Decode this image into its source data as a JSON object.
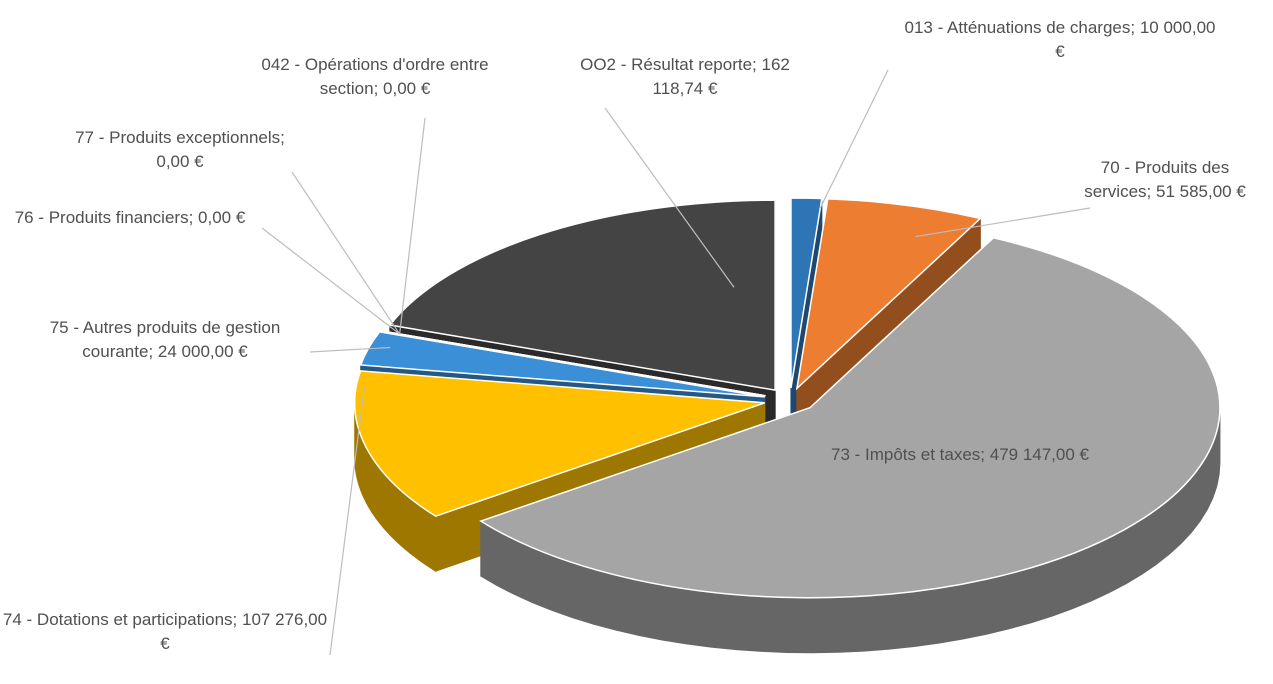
{
  "chart_data": {
    "type": "pie",
    "categories": [
      "013 - Atténuations de charges;",
      "70 - Produits des services;",
      "73 - Impôts et taxes;",
      "74 - Dotations et participations;",
      "75 - Autres produits de gestion courante;",
      "76 - Produits financiers;",
      "77 - Produits exceptionnels;",
      "042 - Opérations d'ordre entre section;",
      "OO2 - Résultat reporte;"
    ],
    "values": [
      10000,
      51585,
      479147,
      107276,
      24000,
      0,
      0,
      0,
      162118.74
    ],
    "value_labels": [
      "10 000,00 €",
      "51 585,00 €",
      "479 147,00 €",
      "107 276,00 €",
      "24 000,00 €",
      "0,00 €",
      "0,00 €",
      "0,00 €",
      "162 118,74 €"
    ],
    "colors": [
      "#2e75b6",
      "#ed7d31",
      "#a5a5a5",
      "#ffc000",
      "#3a8fd6",
      "#8a8a8a",
      "#8a8a8a",
      "#8a8a8a",
      "#444444"
    ],
    "three_d": true,
    "exploded": true
  }
}
